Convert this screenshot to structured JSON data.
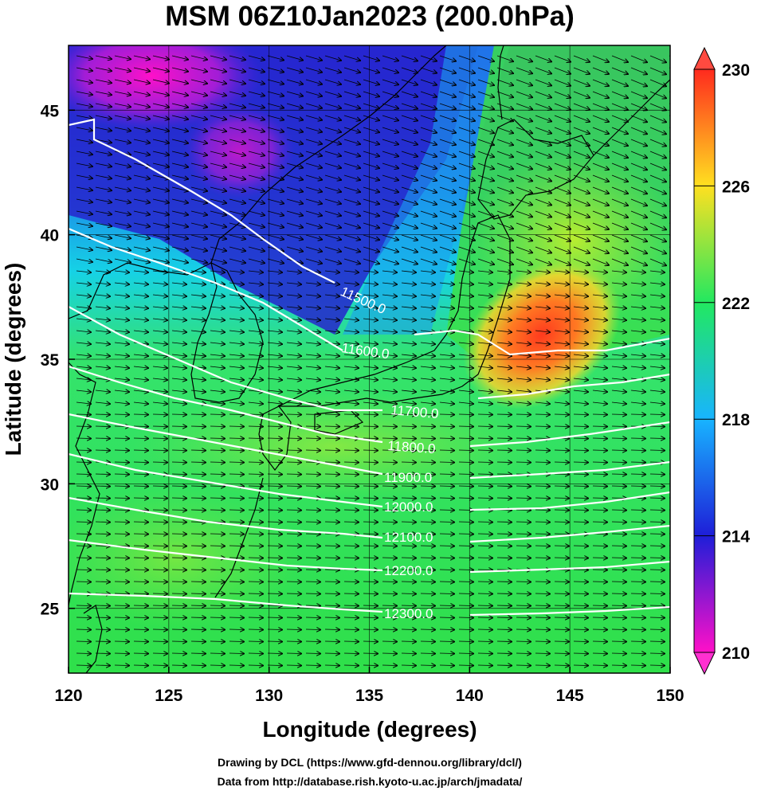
{
  "figure": {
    "title": "MSM 06Z10Jan2023 (200.0hPa)",
    "xlabel": "Longitude (degrees)",
    "ylabel": "Latitude  (degrees)",
    "credit_line1": "Drawing by DCL (https://www.gfd-dennou.org/library/dcl/)",
    "credit_line2": "Data from http://database.rish.kyoto-u.ac.jp/arch/jmadata/"
  },
  "map": {
    "lon_range": [
      120,
      150
    ],
    "lat_range": [
      22.4,
      47.6
    ],
    "x_ticks": [
      "120",
      "125",
      "130",
      "135",
      "140",
      "145",
      "150"
    ],
    "y_ticks": [
      "25",
      "30",
      "35",
      "40",
      "45"
    ],
    "graticule": true,
    "coastlines": true,
    "wind_vectors": "arrows, mostly westerly flow",
    "contours": [
      {
        "value": "11500.0",
        "color": "#ffffff"
      },
      {
        "value": "11600.0",
        "color": "#ffffff"
      },
      {
        "value": "11700.0",
        "color": "#ffffff"
      },
      {
        "value": "11800.0",
        "color": "#ffffff"
      },
      {
        "value": "11900.0",
        "color": "#ffffff"
      },
      {
        "value": "12000.0",
        "color": "#ffffff"
      },
      {
        "value": "12100.0",
        "color": "#ffffff"
      },
      {
        "value": "12200.0",
        "color": "#ffffff"
      },
      {
        "value": "12300.0",
        "color": "#ffffff"
      }
    ]
  },
  "colorbar": {
    "min": 210,
    "max": 230,
    "labels": [
      "230",
      "226",
      "222",
      "218",
      "214",
      "210"
    ],
    "colors": [
      "#ff10c8",
      "#1e1ed8",
      "#18b4ff",
      "#22e860",
      "#ffe020",
      "#ff2a1e"
    ]
  }
}
